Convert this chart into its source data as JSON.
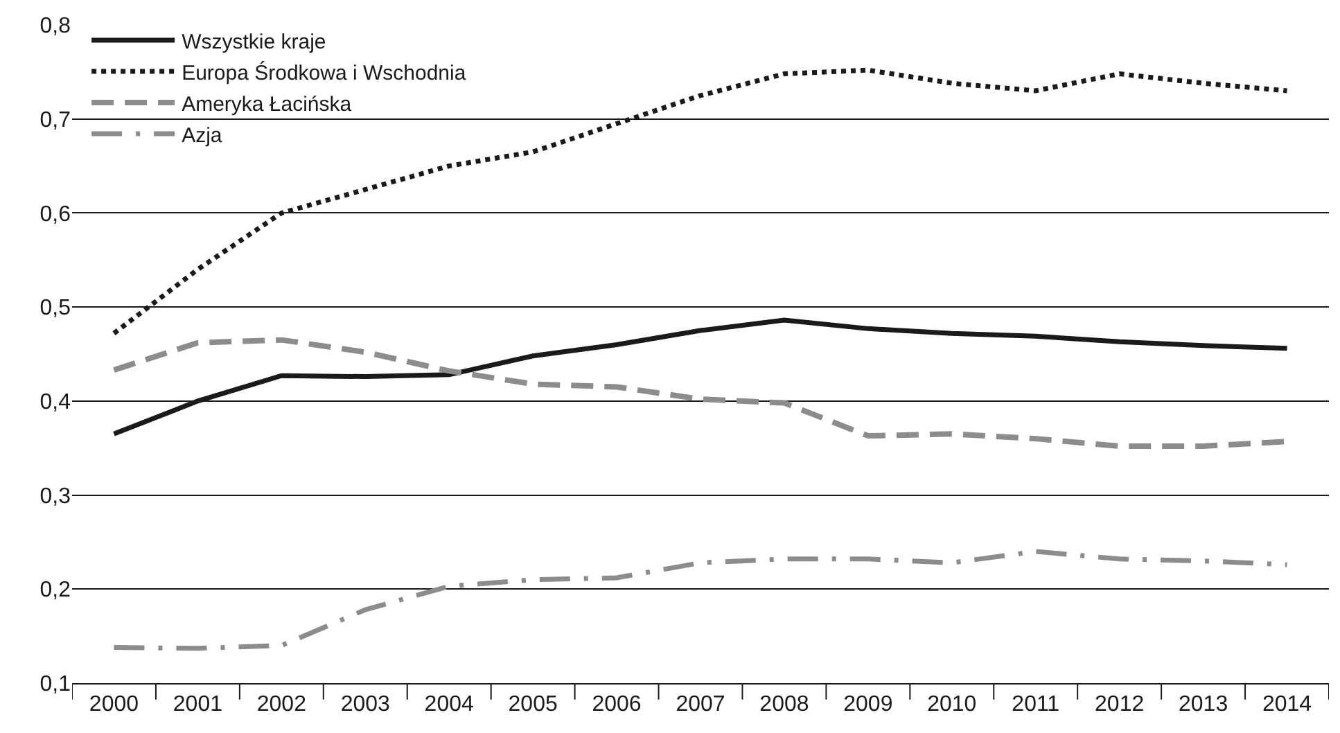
{
  "chart_data": {
    "type": "line",
    "categories": [
      "2000",
      "2001",
      "2002",
      "2003",
      "2004",
      "2005",
      "2006",
      "2007",
      "2008",
      "2009",
      "2010",
      "2011",
      "2012",
      "2013",
      "2014"
    ],
    "series": [
      {
        "name": "Wszystkie kraje",
        "color": "#1a1a1a",
        "line_style": "solid",
        "values": [
          0.365,
          0.4,
          0.427,
          0.426,
          0.428,
          0.448,
          0.46,
          0.475,
          0.486,
          0.477,
          0.472,
          0.469,
          0.463,
          0.459,
          0.456
        ]
      },
      {
        "name": "Europa Środkowa i Wschodnia",
        "color": "#1a1a1a",
        "line_style": "dotted",
        "values": [
          0.472,
          0.54,
          0.6,
          0.625,
          0.65,
          0.665,
          0.695,
          0.725,
          0.748,
          0.752,
          0.738,
          0.73,
          0.748,
          0.738,
          0.73
        ]
      },
      {
        "name": "Ameryka Łacińska",
        "color": "#8c8c8c",
        "line_style": "dashed",
        "values": [
          0.433,
          0.462,
          0.465,
          0.452,
          0.432,
          0.418,
          0.415,
          0.402,
          0.398,
          0.363,
          0.365,
          0.36,
          0.352,
          0.352,
          0.357
        ]
      },
      {
        "name": "Azja",
        "color": "#8c8c8c",
        "line_style": "dashdot",
        "values": [
          0.138,
          0.137,
          0.14,
          0.178,
          0.203,
          0.21,
          0.212,
          0.228,
          0.232,
          0.232,
          0.228,
          0.24,
          0.232,
          0.23,
          0.226
        ]
      }
    ],
    "ylim": [
      0.1,
      0.8
    ],
    "yticks": [
      {
        "value": 0.1,
        "label": "0,1"
      },
      {
        "value": 0.2,
        "label": "0,2"
      },
      {
        "value": 0.3,
        "label": "0,3"
      },
      {
        "value": 0.4,
        "label": "0,4"
      },
      {
        "value": 0.5,
        "label": "0,5"
      },
      {
        "value": 0.6,
        "label": "0,6"
      },
      {
        "value": 0.7,
        "label": "0,7"
      },
      {
        "value": 0.8,
        "label": "0,8"
      }
    ],
    "grid": "y",
    "legend": "top left",
    "marker": "none"
  }
}
